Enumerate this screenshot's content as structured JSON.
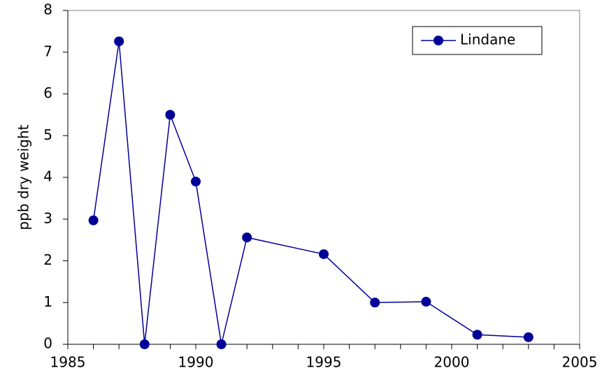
{
  "chart_data": {
    "type": "line",
    "y_label": "ppb dry weight",
    "x": [
      1986,
      1987,
      1988,
      1989,
      1990,
      1991,
      1992,
      1995,
      1997,
      1999,
      2001,
      2003
    ],
    "series": [
      {
        "name": "Lindane",
        "color": "#000099",
        "values": [
          2.97,
          7.26,
          0,
          5.5,
          3.9,
          0,
          2.56,
          2.16,
          1.0,
          1.02,
          0.23,
          0.17
        ]
      }
    ],
    "xlim": [
      1985,
      2005
    ],
    "xticks": [
      1985,
      1990,
      1995,
      2000,
      2005
    ],
    "ylim": [
      0,
      8
    ],
    "yticks": [
      0,
      1,
      2,
      3,
      4,
      5,
      6,
      7,
      8
    ],
    "grid": false,
    "legend_position": "upper right"
  }
}
